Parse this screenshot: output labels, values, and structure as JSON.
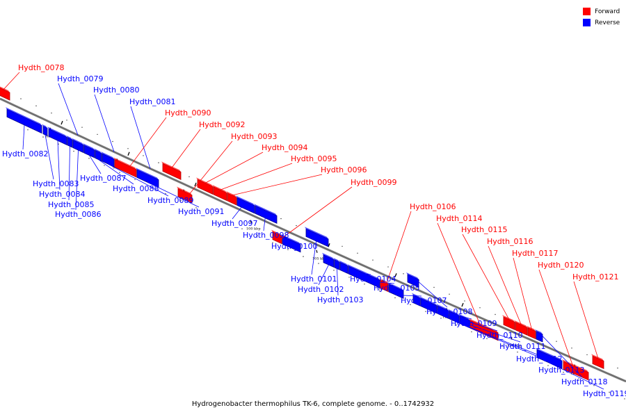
{
  "legend": {
    "forward_label": "Forward",
    "reverse_label": "Reverse",
    "forward_color": "#ff0000",
    "reverse_color": "#0000ff"
  },
  "caption": "Hydrogenobacter thermophilus TK-6, complete genome. - 0..1742932",
  "scale_ticks": [
    "85 kbp",
    "90 kbp",
    "95 kbp",
    "100 kbp",
    "105 kbp",
    "110 kbp",
    "115 kbp",
    "120 kbp",
    "125 kbp"
  ],
  "genes": [
    {
      "name": "Hydth_0078",
      "strand": "forward"
    },
    {
      "name": "Hydth_0079",
      "strand": "reverse"
    },
    {
      "name": "Hydth_0080",
      "strand": "reverse"
    },
    {
      "name": "Hydth_0081",
      "strand": "reverse"
    },
    {
      "name": "Hydth_0082",
      "strand": "reverse"
    },
    {
      "name": "Hydth_0083",
      "strand": "reverse"
    },
    {
      "name": "Hydth_0084",
      "strand": "reverse"
    },
    {
      "name": "Hydth_0085",
      "strand": "reverse"
    },
    {
      "name": "Hydth_0086",
      "strand": "reverse"
    },
    {
      "name": "Hydth_0087",
      "strand": "reverse"
    },
    {
      "name": "Hydth_0088",
      "strand": "reverse"
    },
    {
      "name": "Hydth_0089",
      "strand": "reverse"
    },
    {
      "name": "Hydth_0090",
      "strand": "forward"
    },
    {
      "name": "Hydth_0091",
      "strand": "reverse"
    },
    {
      "name": "Hydth_0092",
      "strand": "forward"
    },
    {
      "name": "Hydth_0093",
      "strand": "forward"
    },
    {
      "name": "Hydth_0094",
      "strand": "forward"
    },
    {
      "name": "Hydth_0095",
      "strand": "forward"
    },
    {
      "name": "Hydth_0096",
      "strand": "forward"
    },
    {
      "name": "Hydth_0097",
      "strand": "reverse"
    },
    {
      "name": "Hydth_0098",
      "strand": "reverse"
    },
    {
      "name": "Hydth_0099",
      "strand": "forward"
    },
    {
      "name": "Hydth_0100",
      "strand": "reverse"
    },
    {
      "name": "Hydth_0101",
      "strand": "reverse"
    },
    {
      "name": "Hydth_0102",
      "strand": "reverse"
    },
    {
      "name": "Hydth_0103",
      "strand": "reverse"
    },
    {
      "name": "Hydth_0104",
      "strand": "reverse"
    },
    {
      "name": "Hydth_0105",
      "strand": "reverse"
    },
    {
      "name": "Hydth_0106",
      "strand": "forward"
    },
    {
      "name": "Hydth_0107",
      "strand": "reverse"
    },
    {
      "name": "Hydth_0108",
      "strand": "reverse"
    },
    {
      "name": "Hydth_0109",
      "strand": "reverse"
    },
    {
      "name": "Hydth_0110",
      "strand": "reverse"
    },
    {
      "name": "Hydth_0111",
      "strand": "reverse"
    },
    {
      "name": "Hydth_0112",
      "strand": "reverse"
    },
    {
      "name": "Hydth_0113",
      "strand": "reverse"
    },
    {
      "name": "Hydth_0114",
      "strand": "forward"
    },
    {
      "name": "Hydth_0115",
      "strand": "forward"
    },
    {
      "name": "Hydth_0116",
      "strand": "forward"
    },
    {
      "name": "Hydth_0117",
      "strand": "forward"
    },
    {
      "name": "Hydth_0118",
      "strand": "reverse"
    },
    {
      "name": "Hydth_0119",
      "strand": "reverse"
    },
    {
      "name": "Hydth_0120",
      "strand": "forward"
    },
    {
      "name": "Hydth_0121",
      "strand": "forward"
    }
  ]
}
